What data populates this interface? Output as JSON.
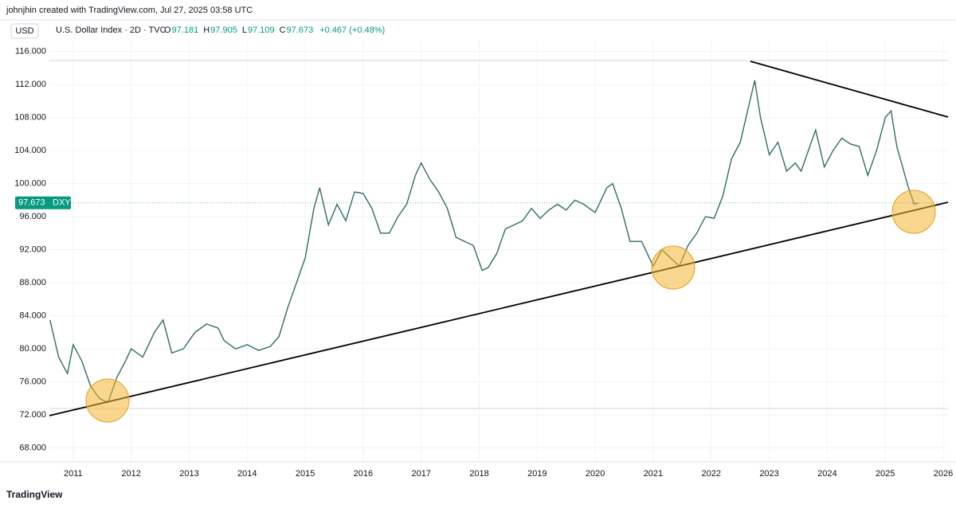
{
  "header": {
    "attribution": "johnjhin created with TradingView.com, Jul 27, 2025 03:58 UTC",
    "currency": "USD",
    "symbol": "U.S. Dollar Index · 2D · TVC",
    "ohlc": [
      {
        "label": "O",
        "value": "97.181"
      },
      {
        "label": "H",
        "value": "97.905"
      },
      {
        "label": "L",
        "value": "97.109"
      },
      {
        "label": "C",
        "value": "97.673"
      }
    ],
    "change": "+0.467 (+0.48%)",
    "ticker": "DXY"
  },
  "footer": {
    "brand": "TradingView"
  },
  "chart_data": {
    "type": "line",
    "last_price": 97.673,
    "xlim": [
      2010.59,
      2026.11
    ],
    "ylim": [
      64.15,
      117.35
    ],
    "xticks": [
      2011,
      2012,
      2013,
      2014,
      2015,
      2016,
      2017,
      2018,
      2019,
      2020,
      2021,
      2022,
      2023,
      2024,
      2025,
      2026
    ],
    "yticks": [
      {
        "value": 68,
        "label": "68.000"
      },
      {
        "value": 72,
        "label": "72.000"
      },
      {
        "value": 76,
        "label": "76.000"
      },
      {
        "value": 80,
        "label": "80.000"
      },
      {
        "value": 84,
        "label": "84.000"
      },
      {
        "value": 88,
        "label": "88.000"
      },
      {
        "value": 92,
        "label": "92.000"
      },
      {
        "value": 96,
        "label": "96.000"
      },
      {
        "value": 100,
        "label": "100.000"
      },
      {
        "value": 104,
        "label": "104.000"
      },
      {
        "value": 108,
        "label": "108.000"
      },
      {
        "value": 112,
        "label": "112.000"
      },
      {
        "value": 116,
        "label": "116.000"
      }
    ],
    "x": [
      2010.6,
      2010.75,
      2010.9,
      2011.0,
      2011.15,
      2011.3,
      2011.45,
      2011.6,
      2011.75,
      2011.9,
      2012.0,
      2012.2,
      2012.4,
      2012.55,
      2012.7,
      2012.9,
      2013.1,
      2013.3,
      2013.5,
      2013.6,
      2013.8,
      2014.0,
      2014.2,
      2014.4,
      2014.55,
      2014.7,
      2014.85,
      2015.0,
      2015.15,
      2015.25,
      2015.4,
      2015.55,
      2015.7,
      2015.85,
      2016.0,
      2016.15,
      2016.3,
      2016.45,
      2016.6,
      2016.75,
      2016.9,
      2017.0,
      2017.15,
      2017.3,
      2017.45,
      2017.6,
      2017.75,
      2017.9,
      2018.05,
      2018.15,
      2018.3,
      2018.45,
      2018.6,
      2018.75,
      2018.9,
      2019.05,
      2019.2,
      2019.35,
      2019.5,
      2019.65,
      2019.8,
      2020.0,
      2020.2,
      2020.3,
      2020.45,
      2020.6,
      2020.8,
      2021.0,
      2021.15,
      2021.3,
      2021.45,
      2021.6,
      2021.75,
      2021.9,
      2022.05,
      2022.2,
      2022.35,
      2022.5,
      2022.65,
      2022.75,
      2022.85,
      2023.0,
      2023.15,
      2023.3,
      2023.45,
      2023.55,
      2023.7,
      2023.8,
      2023.95,
      2024.1,
      2024.25,
      2024.4,
      2024.55,
      2024.7,
      2024.85,
      2025.0,
      2025.1,
      2025.2,
      2025.3,
      2025.4,
      2025.5,
      2025.57
    ],
    "series": [
      {
        "name": "DXY",
        "color": "#2f6e63",
        "values": [
          83.5,
          79,
          77,
          80.5,
          78.5,
          75.5,
          74,
          73.5,
          76.5,
          78.5,
          80,
          79,
          82,
          83.5,
          79.5,
          80,
          82,
          83,
          82.5,
          81,
          80,
          80.5,
          79.8,
          80.3,
          81.5,
          85,
          88,
          91,
          97,
          99.5,
          95,
          97.5,
          95.5,
          99,
          98.8,
          97,
          94,
          94,
          96,
          97.5,
          101,
          102.5,
          100.5,
          99,
          97,
          93.5,
          93,
          92.5,
          89.5,
          89.8,
          91.5,
          94.5,
          95,
          95.5,
          97,
          95.8,
          96.8,
          97.5,
          96.8,
          98,
          97.5,
          96.5,
          99.5,
          100,
          97,
          93,
          93,
          90,
          92,
          91,
          90,
          92.5,
          94,
          96,
          95.8,
          98.5,
          103,
          105,
          109.5,
          112.5,
          108,
          103.5,
          105,
          101.5,
          102.5,
          101.5,
          104.5,
          106.5,
          102,
          104,
          105.5,
          104.8,
          104.5,
          101,
          104,
          108,
          108.8,
          104.5,
          102,
          99.5,
          97.5,
          97.67
        ]
      }
    ]
  }
}
